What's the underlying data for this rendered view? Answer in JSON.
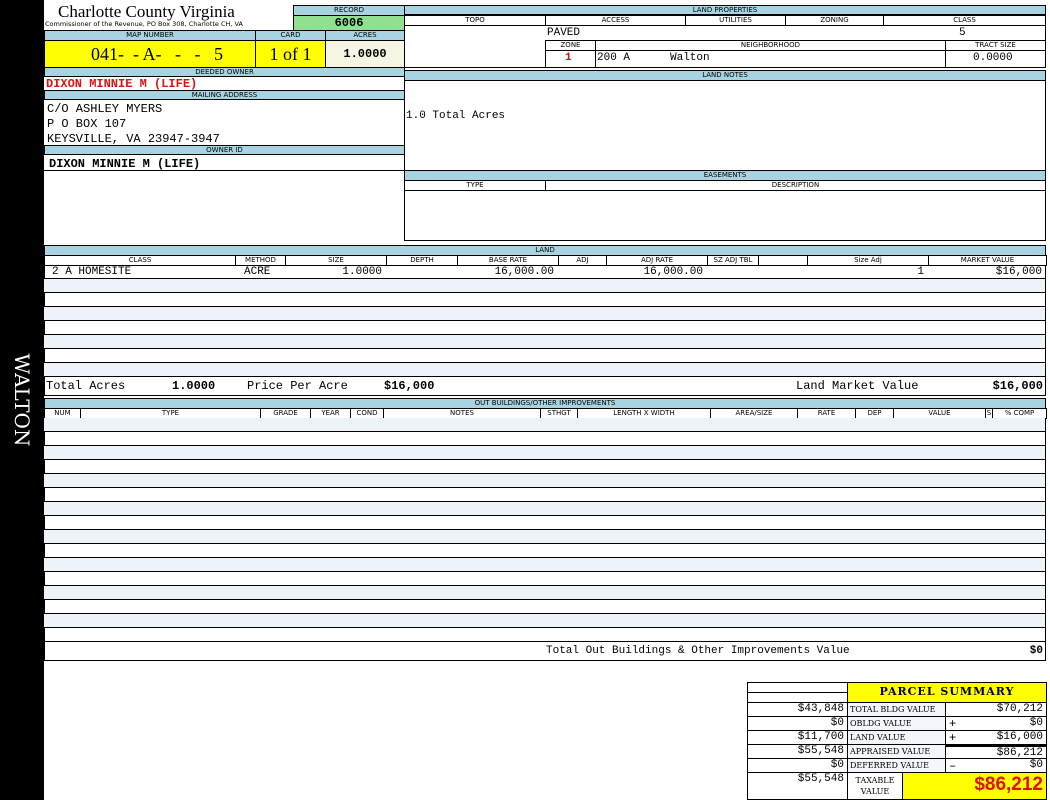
{
  "sidebar": {
    "label": "WALTON"
  },
  "header": {
    "title": "Charlotte County Virginia",
    "subtitle": "Commissioner of the Revenue, PO Box 308, Charlotte CH, VA",
    "record_label": "RECORD",
    "record": "6006"
  },
  "parcel": {
    "map_number_label": "MAP NUMBER",
    "map_number": "041-  - A-   -   -   5",
    "card_label": "CARD",
    "card": "1 of 1",
    "acres_label": "ACRES",
    "acres": "1.0000"
  },
  "owner": {
    "deeded_label": "DEEDED OWNER",
    "deeded": "DIXON MINNIE M (LIFE)",
    "mailing_label": "MAILING ADDRESS",
    "address": [
      "C/O ASHLEY MYERS",
      "P O BOX 107",
      "KEYSVILLE, VA 23947-3947"
    ],
    "owner_id_label": "OWNER ID",
    "owner_id": "DIXON MINNIE M (LIFE)"
  },
  "land_properties": {
    "title": "LAND PROPERTIES",
    "topo_label": "TOPO",
    "access_label": "ACCESS",
    "utilities_label": "UTILITIES",
    "zoning_label": "ZONING",
    "class_label": "CLASS",
    "access": "PAVED",
    "class": "5",
    "zone_label": "ZONE",
    "neighborhood_label": "NEIGHBORHOOD",
    "tract_label": "TRACT SIZE",
    "zone": "1",
    "neighborhood_code": "200 A",
    "neighborhood": "Walton",
    "tract_size": "0.0000"
  },
  "land_notes": {
    "title": "LAND NOTES",
    "text": "1.0 Total Acres"
  },
  "easements": {
    "title": "EASEMENTS",
    "type_label": "TYPE",
    "description_label": "DESCRIPTION"
  },
  "land": {
    "title": "LAND",
    "columns": [
      "CLASS",
      "METHOD",
      "SIZE",
      "DEPTH",
      "BASE RATE",
      "ADJ",
      "ADJ RATE",
      "SZ ADJ TBL",
      "",
      "Size Adj",
      "MARKET VALUE"
    ],
    "rows": [
      [
        "2 A HOMESITE",
        "ACRE",
        "1.0000",
        "",
        "16,000.00",
        "",
        "16,000.00",
        "",
        "",
        "1",
        "$16,000"
      ]
    ],
    "total_acres_label": "Total Acres",
    "total_acres": "1.0000",
    "price_per_acre_label": "Price Per Acre",
    "price_per_acre": "$16,000",
    "market_value_label": "Land Market Value",
    "market_value": "$16,000"
  },
  "outbuildings": {
    "title": "OUT BUILDINGS/OTHER IMPROVEMENTS",
    "columns": [
      "NUM",
      "TYPE",
      "GRADE",
      "YEAR",
      "COND",
      "NOTES",
      "STHGT",
      "LENGTH X WIDTH",
      "AREA/SIZE",
      "RATE",
      "DEP",
      "VALUE",
      "S",
      "% COMP"
    ],
    "total_label": "Total Out Buildings & Other Improvements Value",
    "total": "$0"
  },
  "summary": {
    "title": "PARCEL SUMMARY",
    "rows": [
      {
        "prior": "$43,848",
        "label": "TOTAL BLDG VALUE",
        "sign": "",
        "value": "$70,212"
      },
      {
        "prior": "$0",
        "label": "OBLDG VALUE",
        "sign": "+",
        "value": "$0"
      },
      {
        "prior": "$11,700",
        "label": "LAND VALUE",
        "sign": "+",
        "value": "$16,000"
      },
      {
        "prior": "$55,548",
        "label": "APPRAISED VALUE",
        "sign": "",
        "value": "$86,212"
      },
      {
        "prior": "$0",
        "label": "DEFERRED VALUE",
        "sign": "–",
        "value": "$0"
      }
    ],
    "taxable_prior": "$55,548",
    "taxable_label": "TAXABLE VALUE",
    "taxable": "$86,212"
  },
  "colors": {
    "header_band": "#a8d4e2",
    "record_green": "#90e090",
    "highlight_yellow": "#ffff00",
    "owner_red": "#e01010"
  }
}
